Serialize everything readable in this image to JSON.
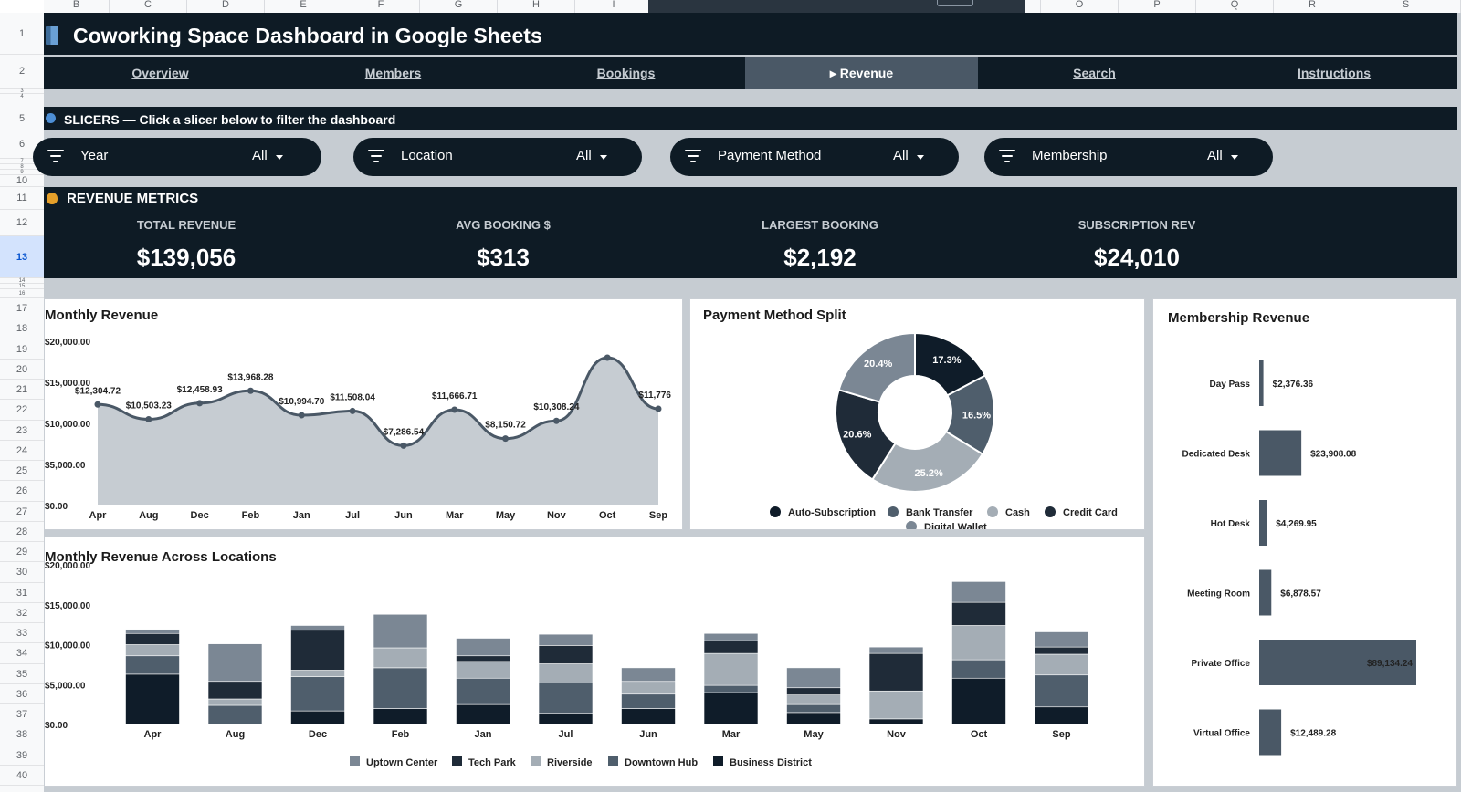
{
  "spreadsheet": {
    "columns": [
      "B",
      "C",
      "D",
      "E",
      "F",
      "G",
      "H",
      "I",
      "",
      "",
      "",
      "",
      "O",
      "P",
      "Q",
      "R",
      "S"
    ],
    "rows": [
      "1",
      "2",
      "3",
      "4",
      "5",
      "6",
      "7",
      "8",
      "9",
      "10",
      "11",
      "12",
      "13",
      "14",
      "15",
      "16",
      "17",
      "18",
      "19",
      "20",
      "21",
      "22",
      "23",
      "24",
      "25",
      "26",
      "27",
      "28",
      "29",
      "30",
      "31",
      "32",
      "33",
      "34",
      "35",
      "36",
      "37",
      "38",
      "39",
      "40"
    ],
    "selected_row": "13"
  },
  "header": {
    "title": "Coworking Space Dashboard in Google Sheets"
  },
  "nav": {
    "items": [
      {
        "label": "Overview"
      },
      {
        "label": "Members"
      },
      {
        "label": "Bookings"
      },
      {
        "label": "▸ Revenue"
      },
      {
        "label": "Search"
      },
      {
        "label": "Instructions"
      }
    ],
    "active_index": 3
  },
  "slicers": {
    "heading": "SLICERS — Click a slicer below to filter the dashboard",
    "items": [
      {
        "label": "Year",
        "value": "All"
      },
      {
        "label": "Location",
        "value": "All"
      },
      {
        "label": "Payment Method",
        "value": "All"
      },
      {
        "label": "Membership",
        "value": "All"
      }
    ]
  },
  "metrics": {
    "heading": "REVENUE METRICS",
    "items": [
      {
        "label": "TOTAL REVENUE",
        "value": "$139,056"
      },
      {
        "label": "AVG BOOKING $",
        "value": "$313"
      },
      {
        "label": "LARGEST BOOKING",
        "value": "$2,192"
      },
      {
        "label": "SUBSCRIPTION REV",
        "value": "$24,010"
      }
    ]
  },
  "colors": {
    "navy": "#0e1b25",
    "slate": "#4a5866",
    "gray_fill": "#c6ccd2",
    "series": [
      "#7b8794",
      "#1f2b38",
      "#a4adb5",
      "#4f5e6c",
      "#0f1c29"
    ]
  },
  "chart_data": [
    {
      "type": "area",
      "title": "Monthly Revenue",
      "categories": [
        "Apr",
        "Aug",
        "Dec",
        "Feb",
        "Jan",
        "Jul",
        "Jun",
        "Mar",
        "May",
        "Nov",
        "Oct",
        "Sep"
      ],
      "values": [
        12304.72,
        10503.23,
        12458.93,
        13968.28,
        10994.7,
        11508.04,
        7286.54,
        11666.71,
        8150.72,
        10308.24,
        18000,
        11776
      ],
      "data_labels": [
        "$12,304.72",
        "$10,503.23",
        "$12,458.93",
        "$13,968.28",
        "$10,994.70",
        "$11,508.04",
        "$7,286.54",
        "$11,666.71",
        "$8,150.72",
        "$10,308.24",
        "",
        "$11,776"
      ],
      "yticks": [
        "$0.00",
        "$5,000.00",
        "$10,000.00",
        "$15,000.00",
        "$20,000.00"
      ],
      "ylim": [
        0,
        20000
      ],
      "grid": false
    },
    {
      "type": "pie",
      "title": "Payment Method Split",
      "labels": [
        "Auto-Subscription",
        "Bank Transfer",
        "Cash",
        "Credit Card",
        "Digital Wallet"
      ],
      "values": [
        17.3,
        16.5,
        25.2,
        20.6,
        20.4
      ],
      "slice_labels": [
        "17.3%",
        "16.5%",
        "25.2%",
        "20.6%",
        "20.4%"
      ],
      "colors": [
        "#0f1c29",
        "#4f5e6c",
        "#a4adb5",
        "#1f2b38",
        "#7b8794"
      ],
      "legend": "bottom"
    },
    {
      "type": "bar",
      "title": "Monthly Revenue Across Locations",
      "stacked": true,
      "categories": [
        "Apr",
        "Aug",
        "Dec",
        "Feb",
        "Jan",
        "Jul",
        "Jun",
        "Mar",
        "May",
        "Nov",
        "Oct",
        "Sep"
      ],
      "series": [
        {
          "name": "Business District",
          "values": [
            6300,
            0,
            1700,
            2000,
            2500,
            1400,
            2000,
            4000,
            1500,
            700,
            5800,
            2200
          ]
        },
        {
          "name": "Downtown Hub",
          "values": [
            2300,
            2400,
            4300,
            5100,
            3300,
            3800,
            1800,
            900,
            1000,
            0,
            2300,
            4000
          ]
        },
        {
          "name": "Riverside",
          "values": [
            1400,
            800,
            800,
            2500,
            2100,
            2400,
            1600,
            4000,
            1200,
            3500,
            4300,
            2600
          ]
        },
        {
          "name": "Tech Park",
          "values": [
            1400,
            2200,
            5000,
            0,
            700,
            2300,
            0,
            1600,
            900,
            4700,
            2900,
            900
          ]
        },
        {
          "name": "Uptown Center",
          "values": [
            500,
            4700,
            600,
            4200,
            2200,
            1400,
            1700,
            900,
            2500,
            800,
            2600,
            1900
          ]
        }
      ],
      "legend_order": [
        "Uptown Center",
        "Tech Park",
        "Riverside",
        "Downtown Hub",
        "Business District"
      ],
      "yticks": [
        "$0.00",
        "$5,000.00",
        "$10,000.00",
        "$15,000.00",
        "$20,000.00"
      ],
      "ylim": [
        0,
        20000
      ],
      "legend": "bottom"
    },
    {
      "type": "bar",
      "orientation": "horizontal",
      "title": "Membership Revenue",
      "categories": [
        "Day Pass",
        "Dedicated Desk",
        "Hot Desk",
        "Meeting Room",
        "Private Office",
        "Virtual Office"
      ],
      "values": [
        2376.36,
        23908.08,
        4269.95,
        6878.57,
        89134.24,
        12489.28
      ],
      "data_labels": [
        "$2,376.36",
        "$23,908.08",
        "$4,269.95",
        "$6,878.57",
        "$89,134.24",
        "$12,489.28"
      ]
    }
  ]
}
